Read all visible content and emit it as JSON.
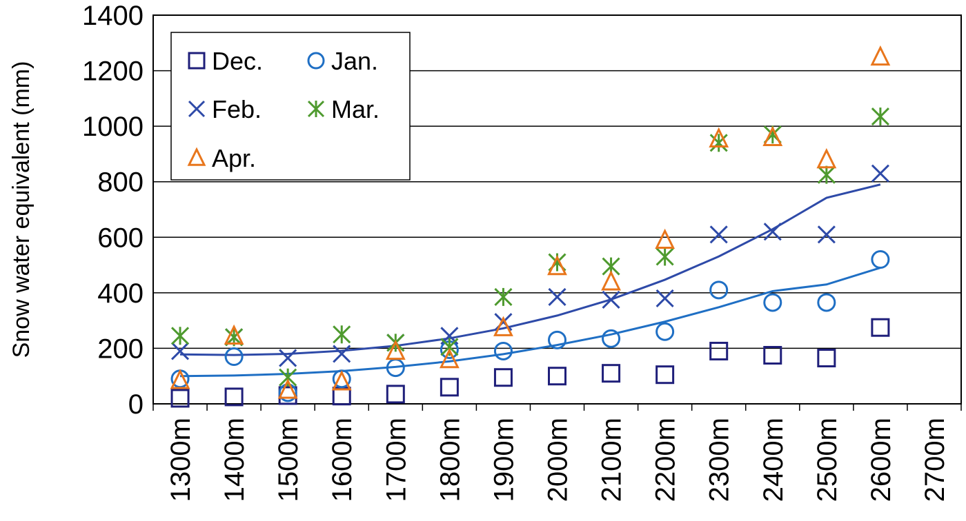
{
  "chart_data": {
    "type": "scatter",
    "title": "",
    "xlabel": "",
    "ylabel": "Snow water equivalent (mm)",
    "categories": [
      "1300m",
      "1400m",
      "1500m",
      "1600m",
      "1700m",
      "1800m",
      "1900m",
      "2000m",
      "2100m",
      "2200m",
      "2300m",
      "2400m",
      "2500m",
      "2600m",
      "2700m"
    ],
    "ylim": [
      0,
      1400
    ],
    "yticks": [
      0,
      200,
      400,
      600,
      800,
      1000,
      1200,
      1400
    ],
    "grid": "horizontal",
    "legend_position": "top-left",
    "series": [
      {
        "name": "Dec.",
        "marker": "square",
        "color": "#1f1f7a",
        "values": [
          20,
          25,
          30,
          28,
          35,
          60,
          95,
          100,
          110,
          105,
          190,
          175,
          165,
          275,
          null
        ]
      },
      {
        "name": "Jan.",
        "marker": "circle",
        "color": "#1f6fc4",
        "values": [
          90,
          170,
          40,
          90,
          130,
          195,
          190,
          230,
          235,
          260,
          410,
          365,
          365,
          520,
          null
        ]
      },
      {
        "name": "Feb.",
        "marker": "x",
        "color": "#2e4aa8",
        "values": [
          190,
          240,
          165,
          180,
          220,
          245,
          295,
          385,
          375,
          380,
          610,
          620,
          610,
          830,
          null
        ]
      },
      {
        "name": "Mar.",
        "marker": "asterisk",
        "color": "#4e9a2e",
        "values": [
          245,
          240,
          95,
          250,
          220,
          205,
          385,
          510,
          495,
          530,
          940,
          970,
          825,
          1035,
          null
        ]
      },
      {
        "name": "Apr.",
        "marker": "triangle",
        "color": "#e8761c",
        "values": [
          85,
          245,
          50,
          80,
          190,
          160,
          275,
          495,
          440,
          590,
          955,
          960,
          880,
          1250,
          null
        ]
      }
    ],
    "trendlines": [
      {
        "series": "Feb.",
        "color": "#2e4aa8",
        "values": [
          178,
          176,
          180,
          191,
          209,
          236,
          272,
          318,
          376,
          447,
          531,
          629,
          742,
          790
        ]
      },
      {
        "series": "Jan.",
        "color": "#1f6fc4",
        "values": [
          100,
          102,
          108,
          118,
          133,
          153,
          179,
          212,
          250,
          296,
          348,
          406,
          430,
          490
        ]
      }
    ]
  }
}
